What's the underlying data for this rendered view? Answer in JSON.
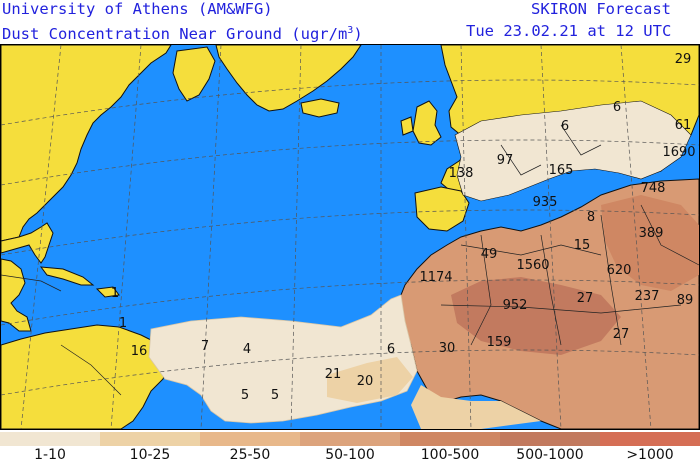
{
  "header": {
    "institution": "University of Athens (AM&WFG)",
    "product": "SKIRON Forecast",
    "variable_text": "Dust Concentration Near Ground (ugr/m",
    "variable_exp": "3",
    "variable_close": ")",
    "valid_time": "Tue 23.02.21 at 12 UTC"
  },
  "colors": {
    "ocean": "#1e90ff",
    "land": "#f5de3c",
    "border": "#111111",
    "grid": "#555555"
  },
  "legend": [
    {
      "label": "1-10",
      "color": "#f1e6d2"
    },
    {
      "label": "10-25",
      "color": "#edd2a6"
    },
    {
      "label": "25-50",
      "color": "#e8b88a"
    },
    {
      "label": "50-100",
      "color": "#dca37c"
    },
    {
      "label": "100-500",
      "color": "#cf8763"
    },
    {
      "label": "500-1000",
      "color": "#c27a5f"
    },
    {
      "label": ">1000",
      "color": "#d56e55"
    }
  ],
  "map_labels": [
    "29",
    "6",
    "61",
    "1690",
    "748",
    "6",
    "97",
    "165",
    "138",
    "935",
    "8",
    "389",
    "49",
    "15",
    "1560",
    "620",
    "1174",
    "952",
    "27",
    "237",
    "89",
    "27",
    "7",
    "4",
    "1",
    "1",
    "16",
    "6",
    "30",
    "159",
    "21",
    "20",
    "5",
    "5"
  ]
}
